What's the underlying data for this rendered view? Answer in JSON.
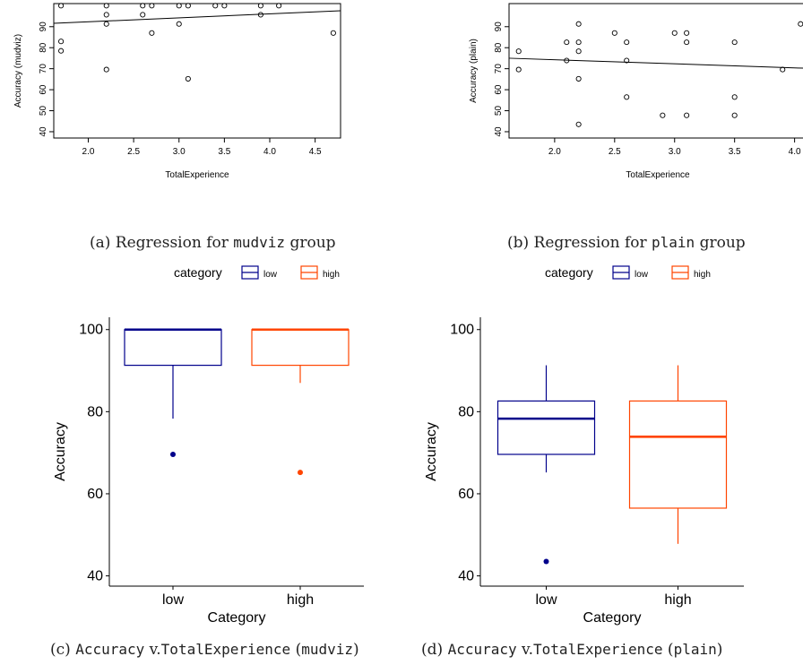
{
  "colors": {
    "low": "#00008B",
    "high": "#FF4500",
    "axis": "#000000"
  },
  "captions": {
    "a": {
      "prefix": "(a) Regression for ",
      "code": "mudviz",
      "suffix": " group"
    },
    "b": {
      "prefix": "(b) Regression for ",
      "code": "plain",
      "suffix": " group"
    },
    "c": {
      "prefix": "(c) ",
      "code1": "Accuracy",
      "mid": " v.",
      "code2": "TotalExperience",
      "open": " (",
      "code3": "mudviz",
      "close": ")"
    },
    "d": {
      "prefix": "(d) ",
      "code1": "Accuracy",
      "mid": " v.",
      "code2": "TotalExperience",
      "open": " (",
      "code3": "plain",
      "close": ")"
    }
  },
  "chart_data": [
    {
      "type": "scatter",
      "xlabel": "TotalExperience",
      "ylabel": "Accuracy (mudviz)",
      "xticks": [
        "2.0",
        "2.5",
        "3.0",
        "3.5",
        "4.0",
        "4.5"
      ],
      "yticks": [
        "40",
        "50",
        "60",
        "70",
        "80",
        "90"
      ],
      "xlim": [
        1.62,
        4.78
      ],
      "ylim": [
        37,
        101
      ],
      "points": [
        [
          1.7,
          100
        ],
        [
          1.7,
          83
        ],
        [
          1.7,
          78.5
        ],
        [
          2.2,
          100
        ],
        [
          2.2,
          95.7
        ],
        [
          2.2,
          91.3
        ],
        [
          2.2,
          69.6
        ],
        [
          2.6,
          100
        ],
        [
          2.6,
          95.7
        ],
        [
          2.7,
          100
        ],
        [
          2.7,
          87
        ],
        [
          3.0,
          100
        ],
        [
          3.0,
          91.3
        ],
        [
          3.1,
          100
        ],
        [
          3.1,
          65.2
        ],
        [
          3.4,
          100
        ],
        [
          3.5,
          100
        ],
        [
          3.9,
          100
        ],
        [
          3.9,
          95.7
        ],
        [
          4.1,
          100
        ],
        [
          4.7,
          87
        ]
      ],
      "regression": [
        [
          1.62,
          91.6
        ],
        [
          4.78,
          97.6
        ]
      ]
    },
    {
      "type": "scatter",
      "xlabel": "TotalExperience",
      "ylabel": "Accuracy (plain)",
      "xticks": [
        "2.0",
        "2.5",
        "3.0",
        "3.5",
        "4.0"
      ],
      "yticks": [
        "40",
        "50",
        "60",
        "70",
        "80",
        "90"
      ],
      "xlim": [
        1.62,
        4.1
      ],
      "ylim": [
        37,
        101
      ],
      "points": [
        [
          1.7,
          78.3
        ],
        [
          1.7,
          69.6
        ],
        [
          2.1,
          82.6
        ],
        [
          2.1,
          73.9
        ],
        [
          2.2,
          91.3
        ],
        [
          2.2,
          82.6
        ],
        [
          2.2,
          78.3
        ],
        [
          2.2,
          65.2
        ],
        [
          2.2,
          43.5
        ],
        [
          2.5,
          87
        ],
        [
          2.6,
          82.6
        ],
        [
          2.6,
          73.9
        ],
        [
          2.6,
          56.5
        ],
        [
          2.9,
          47.8
        ],
        [
          3.0,
          87
        ],
        [
          3.1,
          87
        ],
        [
          3.1,
          82.6
        ],
        [
          3.1,
          47.8
        ],
        [
          3.5,
          82.6
        ],
        [
          3.5,
          56.5
        ],
        [
          3.5,
          47.8
        ],
        [
          3.9,
          69.6
        ],
        [
          4.05,
          91.3
        ]
      ],
      "regression": [
        [
          1.62,
          75
        ],
        [
          4.1,
          70.2
        ]
      ]
    },
    {
      "type": "box",
      "xlabel": "Category",
      "ylabel": "Accuracy",
      "legend_title": "category",
      "legend_position": "top",
      "categories": [
        "low",
        "high"
      ],
      "yticks": [
        "40",
        "60",
        "80",
        "100"
      ],
      "ylim": [
        37.5,
        103
      ],
      "boxes": [
        {
          "name": "low",
          "min": 78.3,
          "q1": 91.3,
          "median": 100,
          "q3": 100,
          "max": 100,
          "outliers": [
            69.6
          ]
        },
        {
          "name": "high",
          "min": 87,
          "q1": 91.3,
          "median": 100,
          "q3": 100,
          "max": 100,
          "outliers": [
            65.2
          ]
        }
      ]
    },
    {
      "type": "box",
      "xlabel": "Category",
      "ylabel": "Accuracy",
      "legend_title": "category",
      "legend_position": "top",
      "categories": [
        "low",
        "high"
      ],
      "yticks": [
        "40",
        "60",
        "80",
        "100"
      ],
      "ylim": [
        37.5,
        103
      ],
      "boxes": [
        {
          "name": "low",
          "min": 65.2,
          "q1": 69.6,
          "median": 78.3,
          "q3": 82.6,
          "max": 91.3,
          "outliers": [
            43.5
          ]
        },
        {
          "name": "high",
          "min": 47.8,
          "q1": 56.5,
          "median": 73.9,
          "q3": 82.6,
          "max": 91.3,
          "outliers": []
        }
      ]
    }
  ]
}
